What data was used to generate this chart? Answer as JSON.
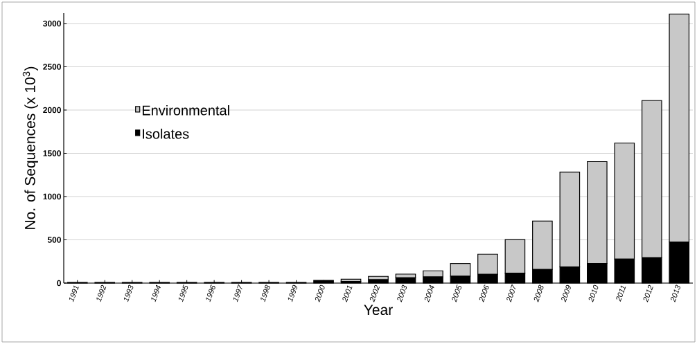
{
  "chart_data": {
    "type": "bar",
    "stacked": true,
    "xlabel": "Year",
    "ylabel": "No. of Sequences (x 10$^{3}$)",
    "categories": [
      "1991",
      "1992",
      "1993",
      "1994",
      "1995",
      "1996",
      "1997",
      "1998",
      "1999",
      "2000",
      "2001",
      "2002",
      "2003",
      "2004",
      "2005",
      "2006",
      "2007",
      "2008",
      "2009",
      "2010",
      "2011",
      "2012",
      "2013"
    ],
    "series": [
      {
        "name": "Isolates",
        "color": "#000000",
        "values": [
          8,
          8,
          8,
          8,
          8,
          8,
          8,
          8,
          8,
          32,
          20,
          40,
          61,
          72,
          80,
          102,
          115,
          158,
          187,
          227,
          278,
          294,
          476
        ]
      },
      {
        "name": "Environmental",
        "color": "#c8c8c8",
        "values": [
          0,
          0,
          0,
          0,
          0,
          0,
          0,
          0,
          0,
          0,
          25,
          38,
          43,
          70,
          147,
          232,
          388,
          559,
          1096,
          1177,
          1340,
          1816,
          2634
        ]
      }
    ],
    "ylim": [
      0,
      3120
    ],
    "yticks": [
      0,
      500,
      1000,
      1500,
      2000,
      2500,
      3000
    ],
    "grid": "y",
    "legend": "left"
  }
}
